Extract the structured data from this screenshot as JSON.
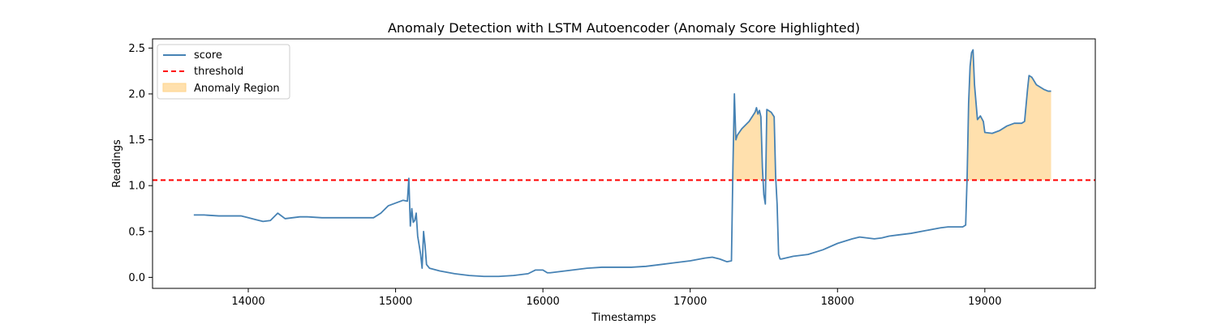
{
  "chart_data": {
    "type": "line",
    "title": "Anomaly Detection with LSTM Autoencoder (Anomaly Score Highlighted)",
    "xlabel": "Timestamps",
    "ylabel": "Readings",
    "xlim": [
      13350,
      19750
    ],
    "ylim": [
      -0.12,
      2.6
    ],
    "xticks": [
      14000,
      15000,
      16000,
      17000,
      18000,
      19000
    ],
    "yticks": [
      0.0,
      0.5,
      1.0,
      1.5,
      2.0,
      2.5
    ],
    "xtick_labels": [
      "14000",
      "15000",
      "16000",
      "17000",
      "18000",
      "19000"
    ],
    "ytick_labels": [
      "0.0",
      "0.5",
      "1.0",
      "1.5",
      "2.0",
      "2.5"
    ],
    "grid": false,
    "legend_position": "top-left",
    "series": [
      {
        "name": "score",
        "color": "#4682b4",
        "x": [
          13630,
          13700,
          13800,
          13900,
          13950,
          14000,
          14050,
          14100,
          14150,
          14200,
          14250,
          14300,
          14350,
          14400,
          14500,
          14600,
          14700,
          14800,
          14850,
          14900,
          14950,
          15000,
          15050,
          15080,
          15090,
          15100,
          15110,
          15120,
          15130,
          15140,
          15150,
          15160,
          15170,
          15180,
          15190,
          15200,
          15210,
          15220,
          15230,
          15300,
          15400,
          15500,
          15600,
          15700,
          15800,
          15900,
          15950,
          16000,
          16030,
          16050,
          16100,
          16200,
          16300,
          16400,
          16500,
          16600,
          16700,
          16800,
          16900,
          17000,
          17100,
          17150,
          17200,
          17250,
          17280,
          17290,
          17300,
          17310,
          17320,
          17350,
          17400,
          17440,
          17450,
          17460,
          17470,
          17480,
          17490,
          17500,
          17510,
          17520,
          17530,
          17550,
          17570,
          17580,
          17590,
          17600,
          17610,
          17620,
          17700,
          17750,
          17800,
          17900,
          18000,
          18100,
          18150,
          18200,
          18250,
          18300,
          18350,
          18400,
          18500,
          18600,
          18700,
          18750,
          18800,
          18850,
          18870,
          18880,
          18890,
          18900,
          18910,
          18920,
          18930,
          18950,
          18970,
          18990,
          19000,
          19050,
          19100,
          19150,
          19200,
          19250,
          19270,
          19290,
          19300,
          19320,
          19350,
          19400,
          19430,
          19450
        ],
        "y": [
          0.68,
          0.68,
          0.67,
          0.67,
          0.67,
          0.65,
          0.63,
          0.61,
          0.62,
          0.7,
          0.64,
          0.65,
          0.66,
          0.66,
          0.65,
          0.65,
          0.65,
          0.65,
          0.65,
          0.7,
          0.78,
          0.81,
          0.84,
          0.83,
          1.08,
          0.56,
          0.75,
          0.6,
          0.62,
          0.7,
          0.45,
          0.35,
          0.25,
          0.1,
          0.5,
          0.35,
          0.14,
          0.12,
          0.1,
          0.07,
          0.04,
          0.02,
          0.01,
          0.01,
          0.02,
          0.04,
          0.08,
          0.08,
          0.05,
          0.05,
          0.06,
          0.08,
          0.1,
          0.11,
          0.11,
          0.11,
          0.12,
          0.14,
          0.16,
          0.18,
          0.21,
          0.22,
          0.2,
          0.17,
          0.18,
          1.2,
          2.0,
          1.5,
          1.55,
          1.62,
          1.7,
          1.8,
          1.85,
          1.78,
          1.82,
          1.75,
          1.2,
          0.9,
          0.8,
          1.83,
          1.82,
          1.8,
          1.75,
          1.1,
          0.8,
          0.25,
          0.2,
          0.2,
          0.23,
          0.24,
          0.25,
          0.3,
          0.37,
          0.42,
          0.44,
          0.43,
          0.42,
          0.43,
          0.45,
          0.46,
          0.48,
          0.51,
          0.54,
          0.55,
          0.55,
          0.55,
          0.57,
          1.1,
          1.9,
          2.3,
          2.45,
          2.48,
          2.1,
          1.72,
          1.76,
          1.7,
          1.58,
          1.57,
          1.6,
          1.65,
          1.68,
          1.68,
          1.7,
          2.05,
          2.2,
          2.18,
          2.1,
          2.05,
          2.03,
          2.03
        ]
      },
      {
        "name": "threshold",
        "color": "#ff0000",
        "style": "dashed",
        "value": 1.06
      },
      {
        "name": "Anomaly Region",
        "color": "#ffe0ad",
        "fill_between": [
          "threshold",
          "score"
        ]
      }
    ]
  }
}
